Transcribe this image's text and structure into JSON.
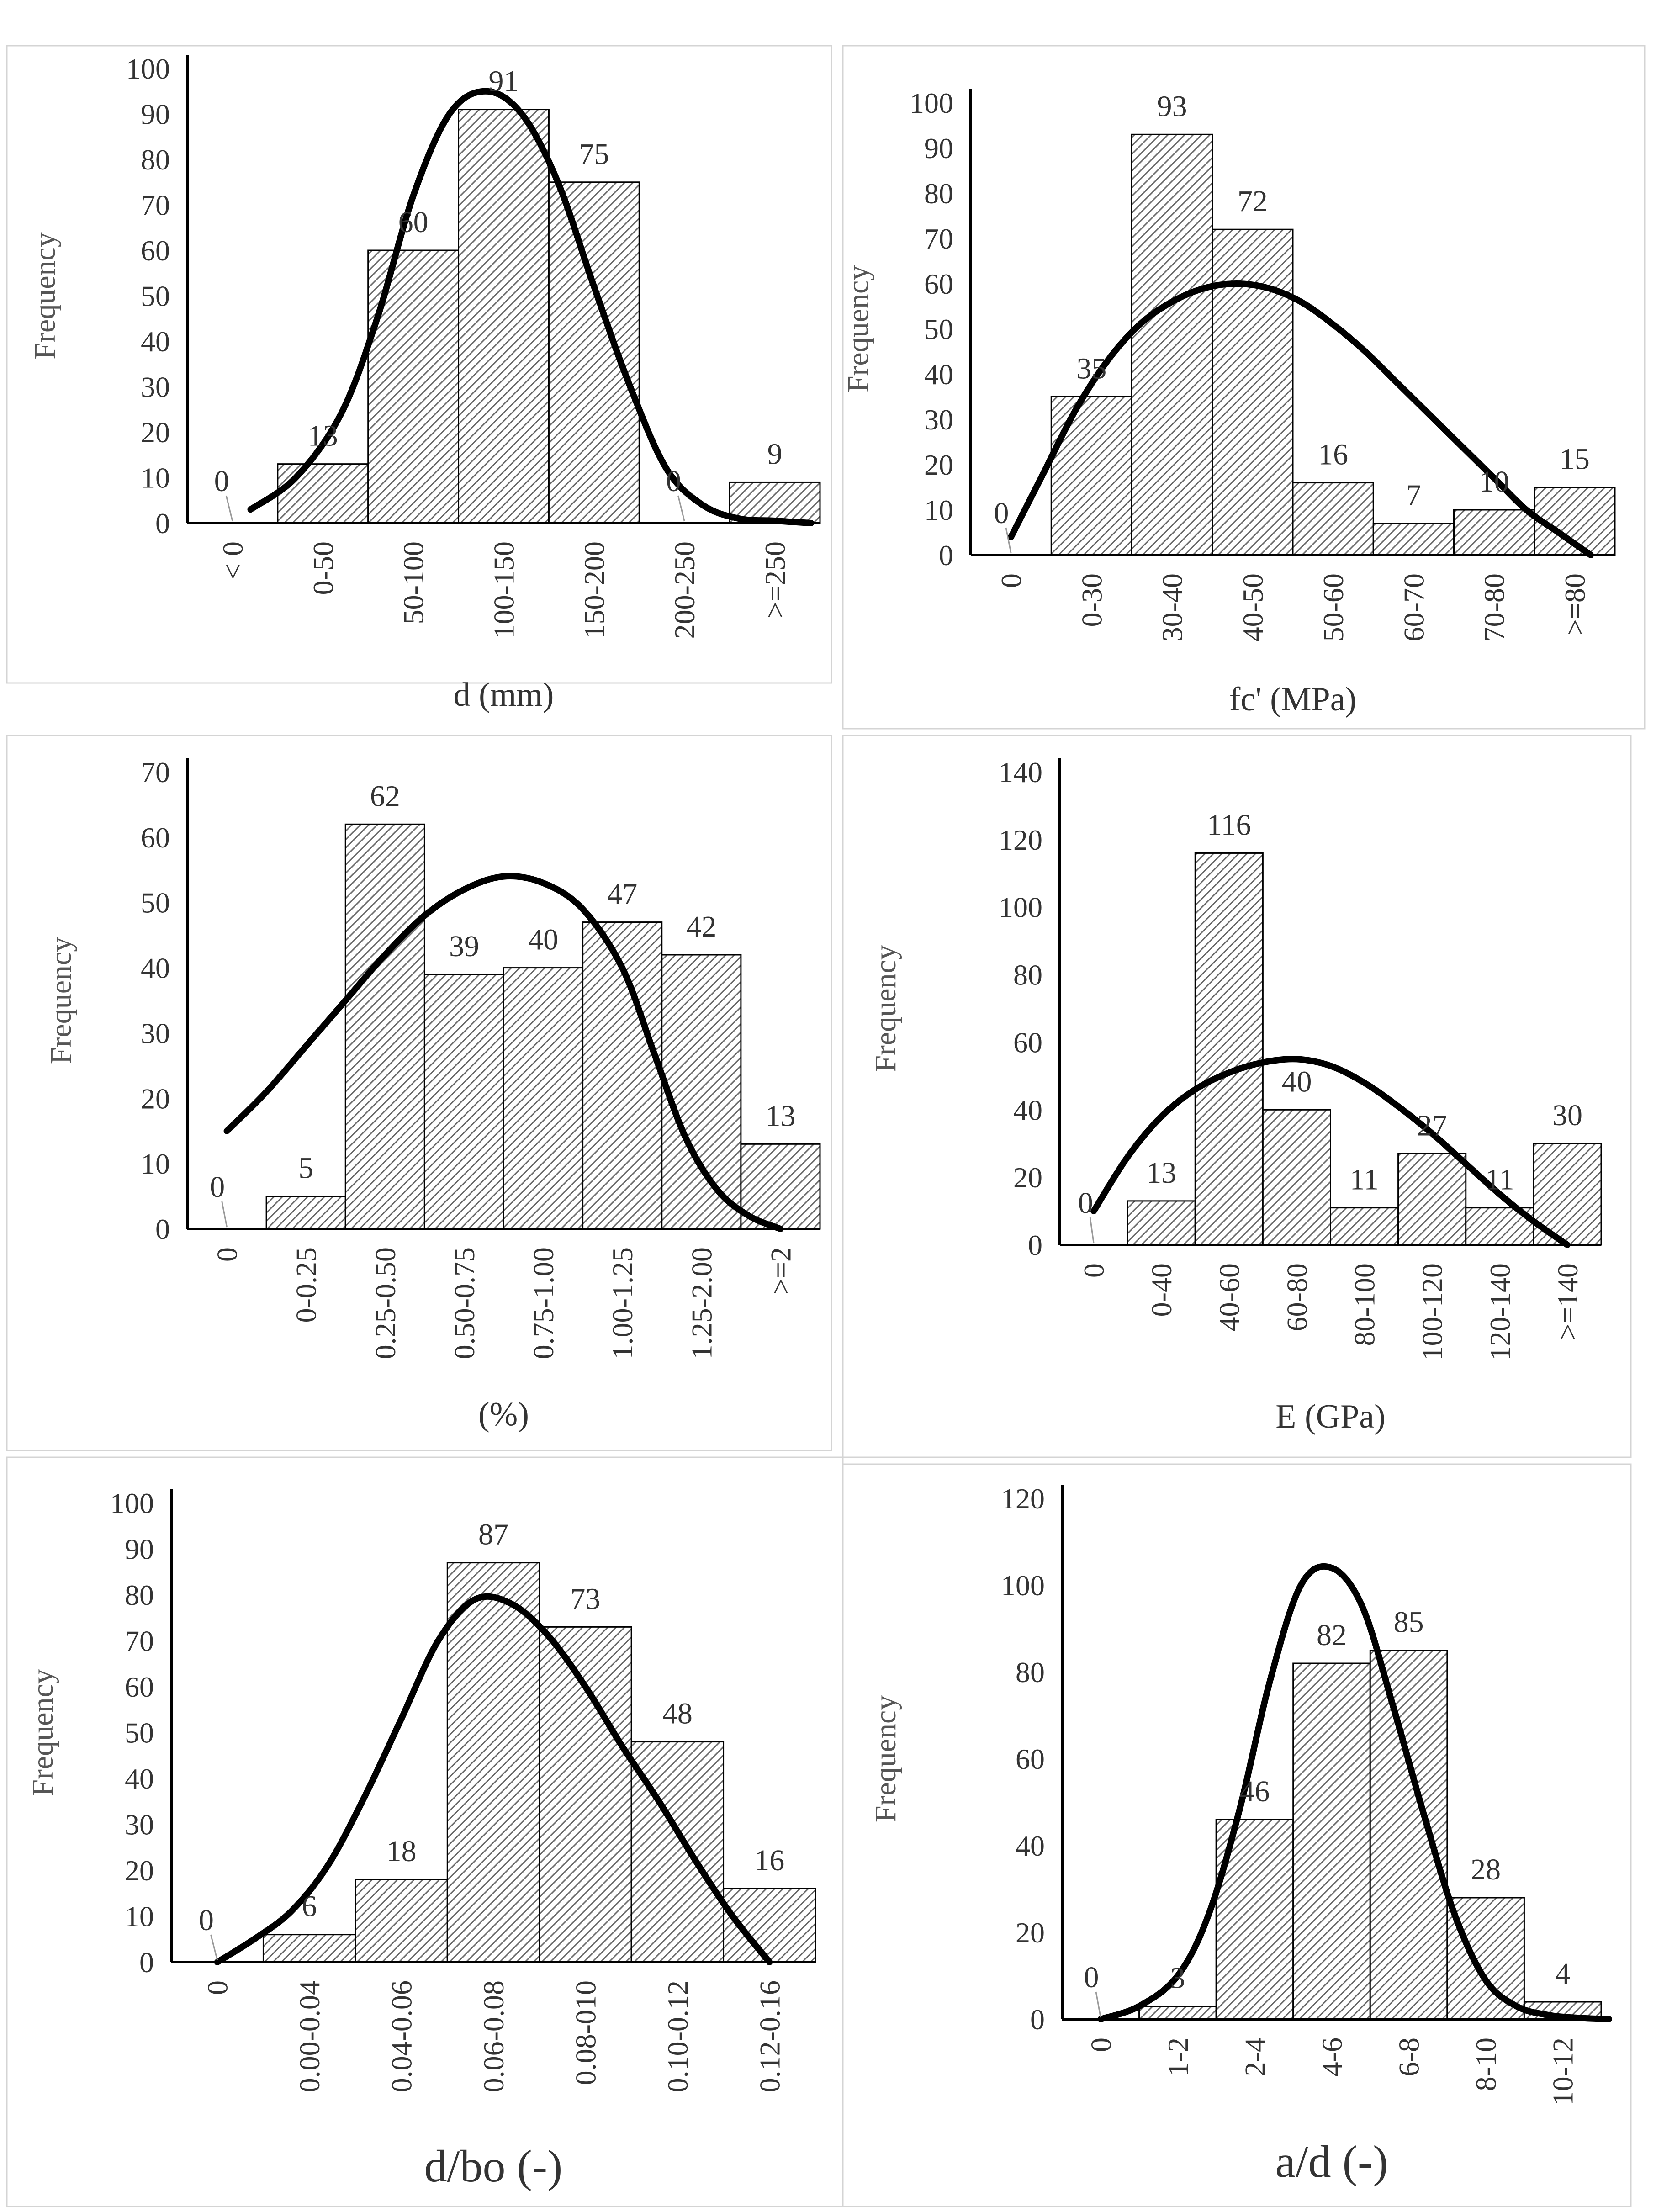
{
  "chart_data": [
    {
      "type": "bar",
      "title": "",
      "xlabel": "d (mm)",
      "ylabel": "Frequency",
      "categories": [
        "< 0",
        "0-50",
        "50-100",
        "100-150",
        "150-200",
        "200-250",
        ">=250"
      ],
      "values": [
        0,
        13,
        60,
        91,
        75,
        0,
        9
      ],
      "value_labels": [
        "0",
        "13",
        "60",
        "91",
        "75",
        "0",
        "9"
      ],
      "yticks": [
        "0",
        "10",
        "20",
        "30",
        "40",
        "50",
        "60",
        "70",
        "80",
        "90",
        "100"
      ],
      "ylim": [
        0,
        100
      ],
      "fit_curve": {
        "x": [
          0.2,
          0.7,
          1.2,
          1.6,
          2.0,
          2.4,
          2.8,
          3.2,
          3.6,
          4.0,
          4.4,
          4.8,
          5.2,
          5.6,
          6.0,
          6.4
        ],
        "y": [
          3,
          10,
          24,
          45,
          72,
          90,
          95,
          90,
          75,
          52,
          30,
          12,
          4,
          1,
          0.5,
          0
        ]
      }
    },
    {
      "type": "bar",
      "title": "",
      "xlabel": "fc' (MPa)",
      "ylabel": "Frequency",
      "categories": [
        "0",
        "0-30",
        "30-40",
        "40-50",
        "50-60",
        "60-70",
        "70-80",
        ">=80"
      ],
      "values": [
        0,
        35,
        93,
        72,
        16,
        7,
        10,
        15
      ],
      "value_labels": [
        "0",
        "35",
        "93",
        "72",
        "16",
        "7",
        "10",
        "15"
      ],
      "yticks": [
        "0",
        "10",
        "20",
        "30",
        "40",
        "50",
        "60",
        "70",
        "80",
        "90",
        "100"
      ],
      "ylim": [
        0,
        100
      ],
      "fit_curve": {
        "x": [
          0.0,
          0.4,
          0.8,
          1.2,
          1.6,
          2.0,
          2.4,
          2.8,
          3.2,
          3.6,
          4.0,
          4.4,
          4.8,
          5.2,
          5.6,
          6.0,
          6.4,
          6.8,
          7.2
        ],
        "y": [
          4,
          18,
          32,
          43,
          51,
          56,
          59,
          60,
          59,
          56,
          51,
          45,
          38,
          31,
          24,
          17,
          10,
          5,
          0
        ]
      }
    },
    {
      "type": "bar",
      "title": "",
      "xlabel": "(%)",
      "ylabel": "Frequency",
      "categories": [
        "0",
        "0-0.25",
        "0.25-0.50",
        "0.50-0.75",
        "0.75-1.00",
        "1.00-1.25",
        "1.25-2.00",
        ">=2"
      ],
      "values": [
        0,
        5,
        62,
        39,
        40,
        47,
        42,
        13
      ],
      "value_labels": [
        "0",
        "5",
        "62",
        "39",
        "40",
        "47",
        "42",
        "13"
      ],
      "yticks": [
        "0",
        "10",
        "20",
        "30",
        "40",
        "50",
        "60",
        "70"
      ],
      "ylim": [
        0,
        70
      ],
      "fit_curve": {
        "x": [
          0.0,
          0.5,
          1.0,
          1.5,
          2.0,
          2.5,
          3.0,
          3.5,
          4.0,
          4.5,
          5.0,
          5.4,
          5.8,
          6.2,
          6.6,
          7.0
        ],
        "y": [
          15,
          21,
          28,
          35,
          42,
          48,
          52,
          54,
          53,
          49,
          40,
          27,
          14,
          6,
          2,
          0
        ]
      }
    },
    {
      "type": "bar",
      "title": "",
      "xlabel": "E (GPa)",
      "ylabel": "Frequency",
      "categories": [
        "0",
        "0-40",
        "40-60",
        "60-80",
        "80-100",
        "100-120",
        "120-140",
        ">=140"
      ],
      "values": [
        0,
        13,
        116,
        40,
        11,
        27,
        11,
        30
      ],
      "value_labels": [
        "0",
        "13",
        "116",
        "40",
        "11",
        "27",
        "11",
        "30"
      ],
      "yticks": [
        "0",
        "20",
        "40",
        "60",
        "80",
        "100",
        "120",
        "140"
      ],
      "ylim": [
        0,
        140
      ],
      "fit_curve": {
        "x": [
          0.0,
          0.5,
          1.0,
          1.5,
          2.0,
          2.5,
          3.0,
          3.5,
          4.0,
          4.5,
          5.0,
          5.5,
          6.0,
          6.5,
          7.0
        ],
        "y": [
          10,
          26,
          38,
          46,
          51,
          54,
          55,
          53,
          48,
          41,
          33,
          24,
          15,
          7,
          0
        ]
      }
    },
    {
      "type": "bar",
      "title": "",
      "xlabel": "d/bo (-)",
      "ylabel": "Frequency",
      "categories": [
        "0",
        "0.00-0.04",
        "0.04-0.06",
        "0.06-0.08",
        "0.08-010",
        "0.10-0.12",
        "0.12-0.16"
      ],
      "values": [
        0,
        6,
        18,
        87,
        73,
        48,
        16
      ],
      "value_labels": [
        "0",
        "6",
        "18",
        "87",
        "73",
        "48",
        "16"
      ],
      "yticks": [
        "0",
        "10",
        "20",
        "30",
        "40",
        "50",
        "60",
        "70",
        "80",
        "90",
        "100"
      ],
      "ylim": [
        0,
        100
      ],
      "fit_curve": {
        "x": [
          0.0,
          0.4,
          0.8,
          1.2,
          1.6,
          2.0,
          2.4,
          2.8,
          3.2,
          3.6,
          4.0,
          4.4,
          4.8,
          5.2,
          5.6,
          6.0
        ],
        "y": [
          0,
          5,
          11,
          21,
          36,
          53,
          70,
          79,
          78,
          71,
          60,
          47,
          35,
          22,
          10,
          0
        ]
      }
    },
    {
      "type": "bar",
      "title": "",
      "xlabel": "a/d (-)",
      "ylabel": "Frequency",
      "categories": [
        "0",
        "1-2",
        "2-4",
        "4-6",
        "6-8",
        "8-10",
        "10-12"
      ],
      "values": [
        0,
        3,
        46,
        82,
        85,
        28,
        4
      ],
      "value_labels": [
        "0",
        "3",
        "46",
        "82",
        "85",
        "28",
        "4"
      ],
      "yticks": [
        "0",
        "20",
        "40",
        "60",
        "80",
        "100",
        "120"
      ],
      "ylim": [
        0,
        120
      ],
      "fit_curve": {
        "x": [
          0.0,
          0.5,
          1.0,
          1.4,
          1.8,
          2.2,
          2.6,
          3.0,
          3.4,
          3.8,
          4.2,
          4.6,
          5.0,
          5.4,
          5.8,
          6.2,
          6.6
        ],
        "y": [
          0,
          3,
          10,
          24,
          48,
          78,
          100,
          104,
          95,
          72,
          47,
          24,
          9,
          3,
          1,
          0.3,
          0
        ]
      }
    }
  ]
}
